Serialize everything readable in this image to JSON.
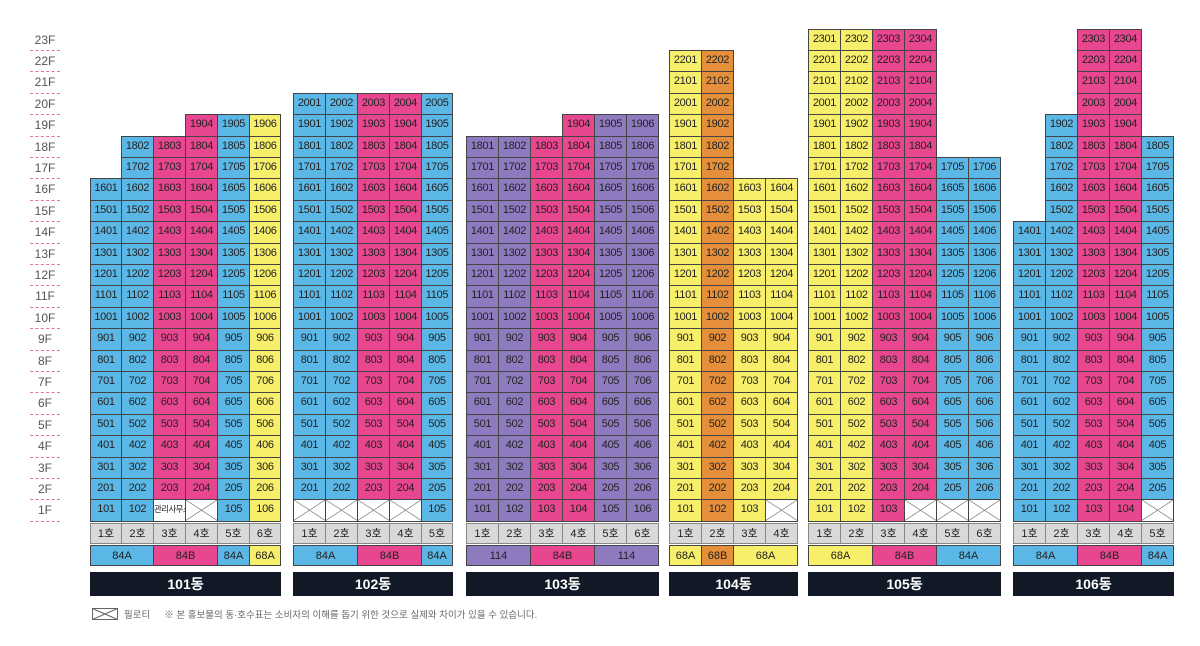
{
  "floors": [
    "23F",
    "22F",
    "21F",
    "20F",
    "19F",
    "18F",
    "17F",
    "16F",
    "15F",
    "14F",
    "13F",
    "12F",
    "11F",
    "10F",
    "9F",
    "8F",
    "7F",
    "6F",
    "5F",
    "4F",
    "3F",
    "2F",
    "1F"
  ],
  "colors": {
    "A": "#5bb7e6",
    "B": "#e8478f",
    "C": "#f7ee6a",
    "D": "#8e7bbf",
    "E": "#e58f3a"
  },
  "buildings": [
    {
      "name": "101동",
      "ho": [
        "1호",
        "2호",
        "3호",
        "4호",
        "5호",
        "6호"
      ],
      "colors": [
        "A",
        "A",
        "B",
        "B",
        "A",
        "C"
      ],
      "tops": [
        16,
        18,
        18,
        19,
        19,
        19
      ],
      "pil": [
        [
          1,
          4
        ]
      ],
      "custom": {
        "1:3": "관리사무소"
      },
      "types": [
        {
          "label": "84A",
          "span": 2,
          "color": "A"
        },
        {
          "label": "84B",
          "span": 2,
          "color": "B"
        },
        {
          "label": "84A",
          "span": 1,
          "color": "A"
        },
        {
          "label": "68A",
          "span": 1,
          "color": "C"
        }
      ]
    },
    {
      "name": "102동",
      "ho": [
        "1호",
        "2호",
        "3호",
        "4호",
        "5호"
      ],
      "colors": [
        "A",
        "A",
        "B",
        "B",
        "A"
      ],
      "tops": [
        20,
        20,
        20,
        20,
        20
      ],
      "pil": [
        [
          1,
          1
        ],
        [
          1,
          2
        ],
        [
          1,
          3
        ],
        [
          1,
          4
        ]
      ],
      "custom": {},
      "types": [
        {
          "label": "84A",
          "span": 2,
          "color": "A"
        },
        {
          "label": "84B",
          "span": 2,
          "color": "B"
        },
        {
          "label": "84A",
          "span": 1,
          "color": "A"
        }
      ]
    },
    {
      "name": "103동",
      "ho": [
        "1호",
        "2호",
        "3호",
        "4호",
        "5호",
        "6호"
      ],
      "colors": [
        "D",
        "D",
        "B",
        "B",
        "D",
        "D"
      ],
      "tops": [
        18,
        18,
        18,
        19,
        19,
        19
      ],
      "pil": [],
      "custom": {},
      "types": [
        {
          "label": "114",
          "span": 2,
          "color": "D"
        },
        {
          "label": "84B",
          "span": 2,
          "color": "B"
        },
        {
          "label": "114",
          "span": 2,
          "color": "D"
        }
      ]
    },
    {
      "name": "104동",
      "ho": [
        "1호",
        "2호",
        "3호",
        "4호"
      ],
      "colors": [
        "C",
        "E",
        "C",
        "C"
      ],
      "tops": [
        22,
        22,
        16,
        16
      ],
      "pil": [
        [
          1,
          4
        ]
      ],
      "custom": {},
      "types": [
        {
          "label": "68A",
          "span": 1,
          "color": "C"
        },
        {
          "label": "68B",
          "span": 1,
          "color": "E"
        },
        {
          "label": "68A",
          "span": 2,
          "color": "C"
        }
      ]
    },
    {
      "name": "105동",
      "ho": [
        "1호",
        "2호",
        "3호",
        "4호",
        "5호",
        "6호"
      ],
      "colors": [
        "C",
        "C",
        "B",
        "B",
        "A",
        "A"
      ],
      "tops": [
        23,
        23,
        23,
        23,
        17,
        17
      ],
      "pil": [
        [
          1,
          4
        ],
        [
          1,
          5
        ],
        [
          1,
          6
        ]
      ],
      "custom": {},
      "types": [
        {
          "label": "68A",
          "span": 2,
          "color": "C"
        },
        {
          "label": "84B",
          "span": 2,
          "color": "B"
        },
        {
          "label": "84A",
          "span": 2,
          "color": "A"
        }
      ]
    },
    {
      "name": "106동",
      "ho": [
        "1호",
        "2호",
        "3호",
        "4호",
        "5호"
      ],
      "colors": [
        "A",
        "A",
        "B",
        "B",
        "A"
      ],
      "tops": [
        14,
        19,
        23,
        23,
        18
      ],
      "pil": [
        [
          1,
          5
        ]
      ],
      "custom": {},
      "types": [
        {
          "label": "84A",
          "span": 2,
          "color": "A"
        },
        {
          "label": "84B",
          "span": 2,
          "color": "B"
        },
        {
          "label": "84A",
          "span": 1,
          "color": "A"
        }
      ]
    }
  ],
  "legend": {
    "pilotis": "필로티",
    "note": "※ 본 홍보물의 동·호수표는 소비자의 이해를 돕기 위한 것으로 실제와 차이가 있을 수 있습니다."
  }
}
